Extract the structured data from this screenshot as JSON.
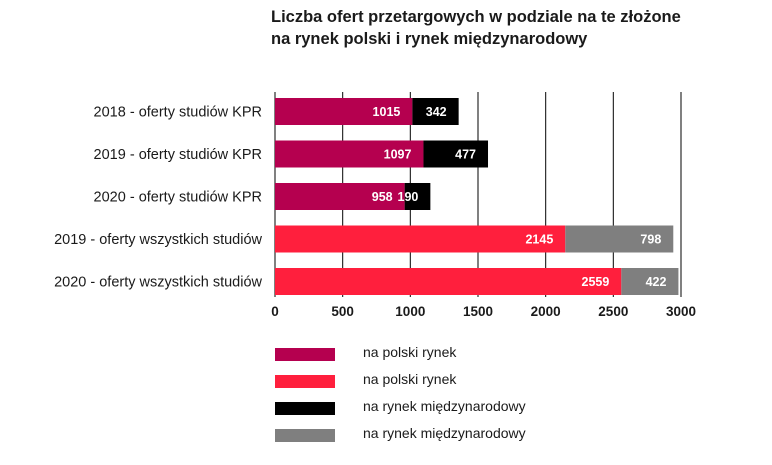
{
  "chart_data": {
    "type": "bar",
    "orientation": "horizontal",
    "stacked": true,
    "title": [
      "Liczba ofert przetargowych w podziale na te złożone",
      "na rynek polski i rynek międzynarodowy"
    ],
    "categories": [
      "2018 - oferty studiów KPR",
      "2019 - oferty studiów KPR",
      "2020 - oferty studiów KPR",
      "2019 - oferty wszystkich studiów",
      "2020 - oferty wszystkich studiów"
    ],
    "series": [
      {
        "name": "na polski rynek",
        "color": "#b5004f",
        "values": [
          1015,
          1097,
          958,
          null,
          null
        ]
      },
      {
        "name": "na polski rynek",
        "color": "#ff1f3d",
        "values": [
          null,
          null,
          null,
          2145,
          2559
        ]
      },
      {
        "name": "na rynek międzynarodowy",
        "color": "#000000",
        "values": [
          342,
          477,
          190,
          null,
          null
        ]
      },
      {
        "name": "na rynek międzynarodowy",
        "color": "#7f7f7f",
        "values": [
          null,
          null,
          null,
          798,
          422
        ]
      }
    ],
    "xlim": [
      0,
      3000
    ],
    "xticks": [
      0,
      500,
      1000,
      1500,
      2000,
      2500,
      3000
    ],
    "grid": true,
    "legend_position": "bottom"
  }
}
